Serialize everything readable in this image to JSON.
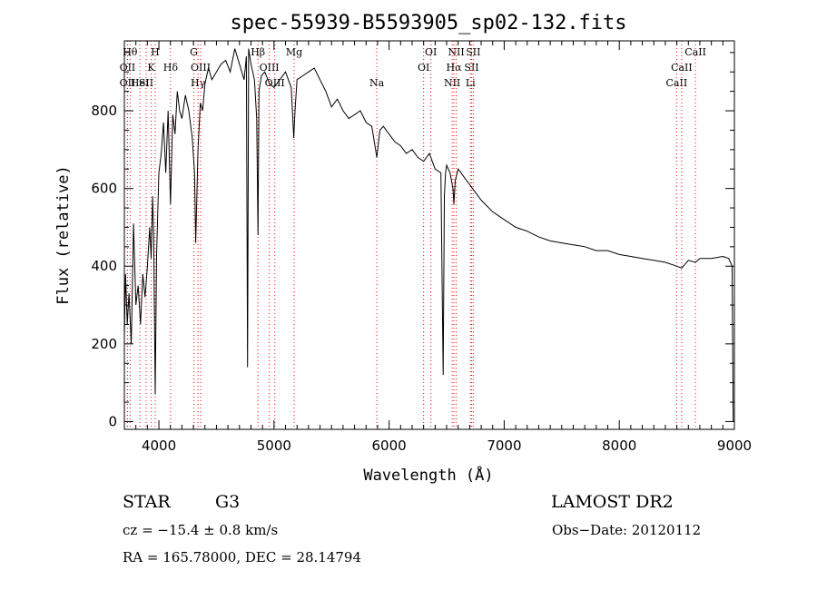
{
  "chart_data": {
    "type": "line",
    "title": "spec-55939-B5593905_sp02-132.fits",
    "xlabel": "Wavelength (Å)",
    "ylabel": "Flux (relative)",
    "xlim": [
      3700,
      9000
    ],
    "ylim": [
      -20,
      980
    ],
    "xticks": [
      4000,
      5000,
      6000,
      7000,
      8000,
      9000
    ],
    "yticks": [
      0,
      200,
      400,
      600,
      800
    ],
    "grid": false,
    "series": [
      {
        "x": [
          3700,
          3710,
          3725,
          3740,
          3760,
          3780,
          3800,
          3820,
          3840,
          3860,
          3880,
          3900,
          3920,
          3933,
          3945,
          3955,
          3968,
          3980,
          4000,
          4020,
          4040,
          4060,
          4080,
          4101,
          4120,
          4140,
          4160,
          4180,
          4200,
          4230,
          4260,
          4290,
          4310,
          4320,
          4340,
          4360,
          4380,
          4400,
          4430,
          4460,
          4500,
          4540,
          4580,
          4620,
          4660,
          4700,
          4740,
          4760,
          4770,
          4780,
          4800,
          4830,
          4850,
          4861,
          4870,
          4890,
          4920,
          4960,
          5000,
          5050,
          5100,
          5150,
          5172,
          5183,
          5200,
          5250,
          5300,
          5350,
          5400,
          5450,
          5500,
          5550,
          5600,
          5650,
          5700,
          5750,
          5800,
          5850,
          5893,
          5920,
          5950,
          6000,
          6050,
          6100,
          6150,
          6200,
          6250,
          6300,
          6350,
          6400,
          6450,
          6470,
          6480,
          6490,
          6500,
          6530,
          6555,
          6563,
          6575,
          6600,
          6650,
          6700,
          6750,
          6800,
          6900,
          7000,
          7100,
          7200,
          7300,
          7400,
          7500,
          7600,
          7700,
          7800,
          7900,
          8000,
          8100,
          8200,
          8300,
          8400,
          8498,
          8542,
          8600,
          8662,
          8700,
          8800,
          8900,
          8950,
          8980,
          8990,
          9000
        ],
        "y": [
          220,
          380,
          250,
          330,
          200,
          510,
          300,
          350,
          250,
          380,
          320,
          400,
          500,
          420,
          580,
          480,
          70,
          430,
          640,
          690,
          770,
          640,
          800,
          560,
          790,
          740,
          850,
          800,
          780,
          840,
          800,
          730,
          640,
          460,
          700,
          820,
          800,
          870,
          910,
          880,
          900,
          920,
          930,
          900,
          960,
          920,
          880,
          940,
          140,
          960,
          920,
          880,
          780,
          480,
          850,
          890,
          900,
          870,
          860,
          880,
          900,
          860,
          730,
          800,
          880,
          890,
          900,
          910,
          880,
          850,
          810,
          830,
          800,
          780,
          790,
          800,
          770,
          760,
          680,
          750,
          760,
          740,
          720,
          710,
          690,
          700,
          680,
          670,
          690,
          650,
          640,
          120,
          580,
          640,
          660,
          640,
          600,
          560,
          620,
          650,
          630,
          610,
          590,
          570,
          540,
          520,
          500,
          490,
          475,
          465,
          460,
          455,
          450,
          440,
          440,
          430,
          425,
          420,
          415,
          410,
          400,
          395,
          415,
          410,
          420,
          420,
          425,
          420,
          400,
          0,
          0
        ]
      }
    ],
    "line_markers": [
      {
        "wave": 3727,
        "label": "OII",
        "row": 2
      },
      {
        "wave": 3727,
        "label": "OII",
        "row": 3
      },
      {
        "wave": 3750,
        "label": "Hθ",
        "row": 1
      },
      {
        "wave": 3835,
        "label": "HeI",
        "row": 3
      },
      {
        "wave": 3889,
        "label": "SII",
        "row": 3
      },
      {
        "wave": 3933,
        "label": "K",
        "row": 2
      },
      {
        "wave": 3968,
        "label": "H",
        "row": 1
      },
      {
        "wave": 4101,
        "label": "Hδ",
        "row": 2
      },
      {
        "wave": 4304,
        "label": "G",
        "row": 1
      },
      {
        "wave": 4340,
        "label": "Hγ",
        "row": 3
      },
      {
        "wave": 4363,
        "label": "OIII",
        "row": 2
      },
      {
        "wave": 4861,
        "label": "Hβ",
        "row": 1
      },
      {
        "wave": 4959,
        "label": "OIII",
        "row": 2
      },
      {
        "wave": 5007,
        "label": "OIII",
        "row": 3
      },
      {
        "wave": 5175,
        "label": "Mg",
        "row": 1
      },
      {
        "wave": 5893,
        "label": "Na",
        "row": 3
      },
      {
        "wave": 6300,
        "label": "OI",
        "row": 2
      },
      {
        "wave": 6363,
        "label": "OI",
        "row": 1
      },
      {
        "wave": 6548,
        "label": "NII",
        "row": 3
      },
      {
        "wave": 6563,
        "label": "Hα",
        "row": 2
      },
      {
        "wave": 6583,
        "label": "NII",
        "row": 1
      },
      {
        "wave": 6707,
        "label": "Li",
        "row": 3
      },
      {
        "wave": 6717,
        "label": "SII",
        "row": 2
      },
      {
        "wave": 6731,
        "label": "SII",
        "row": 1
      },
      {
        "wave": 8498,
        "label": "CaII",
        "row": 3
      },
      {
        "wave": 8542,
        "label": "CaII",
        "row": 2
      },
      {
        "wave": 8662,
        "label": "CaII",
        "row": 1
      }
    ]
  },
  "info": {
    "class": "STAR",
    "subclass": "G3",
    "survey": "LAMOST DR2",
    "cz": "cz = −15.4 ± 0.8 km/s",
    "obs_date": "Obs−Date: 20120112",
    "coords": "RA = 165.78000, DEC =  28.14794"
  },
  "colors": {
    "axes": "#000000",
    "spectrum": "#000000",
    "line_markers": "#ff0000"
  }
}
